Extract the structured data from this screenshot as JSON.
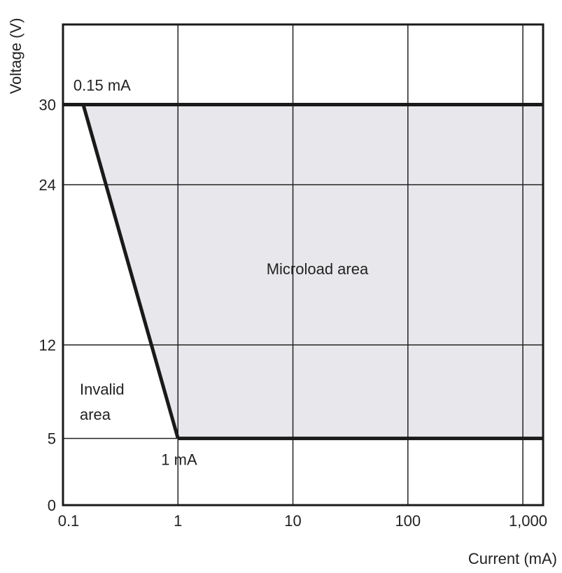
{
  "chart_data": {
    "type": "area",
    "xlabel": "Current (mA)",
    "ylabel": "Voltage (V)",
    "x_scale": "log",
    "xlim": [
      0.1,
      1500
    ],
    "ylim": [
      0,
      36
    ],
    "grid": true,
    "x_ticks": [
      {
        "value": 0.1,
        "label": "0.1"
      },
      {
        "value": 1,
        "label": "1"
      },
      {
        "value": 10,
        "label": "10"
      },
      {
        "value": 100,
        "label": "100"
      },
      {
        "value": 1000,
        "label": "1,000"
      }
    ],
    "y_ticks": [
      {
        "value": 0,
        "label": "0"
      },
      {
        "value": 5,
        "label": "5"
      },
      {
        "value": 12,
        "label": "12"
      },
      {
        "value": 24,
        "label": "24"
      },
      {
        "value": 30,
        "label": "30"
      }
    ],
    "region": {
      "name": "Microload area",
      "points": [
        {
          "x": 0.15,
          "y": 30
        },
        {
          "x": 1500,
          "y": 30
        },
        {
          "x": 1500,
          "y": 5
        },
        {
          "x": 1,
          "y": 5
        }
      ]
    },
    "annotations": [
      {
        "id": "label-015ma",
        "text": "0.15 mA",
        "x": 0.15,
        "y": 30
      },
      {
        "id": "label-1ma",
        "text": "1 mA",
        "x": 1,
        "y": 5
      },
      {
        "id": "label-microload",
        "text": "Microload area",
        "x": 15,
        "y": 20
      },
      {
        "id": "label-invalid",
        "lines": [
          "Invalid",
          "area"
        ],
        "x": 0.25,
        "y": 8
      }
    ],
    "colors": {
      "region_fill": "#e8e8ec",
      "boundary": "#1a1a1a",
      "grid": "#222222",
      "frame": "#1a1a1a"
    }
  }
}
